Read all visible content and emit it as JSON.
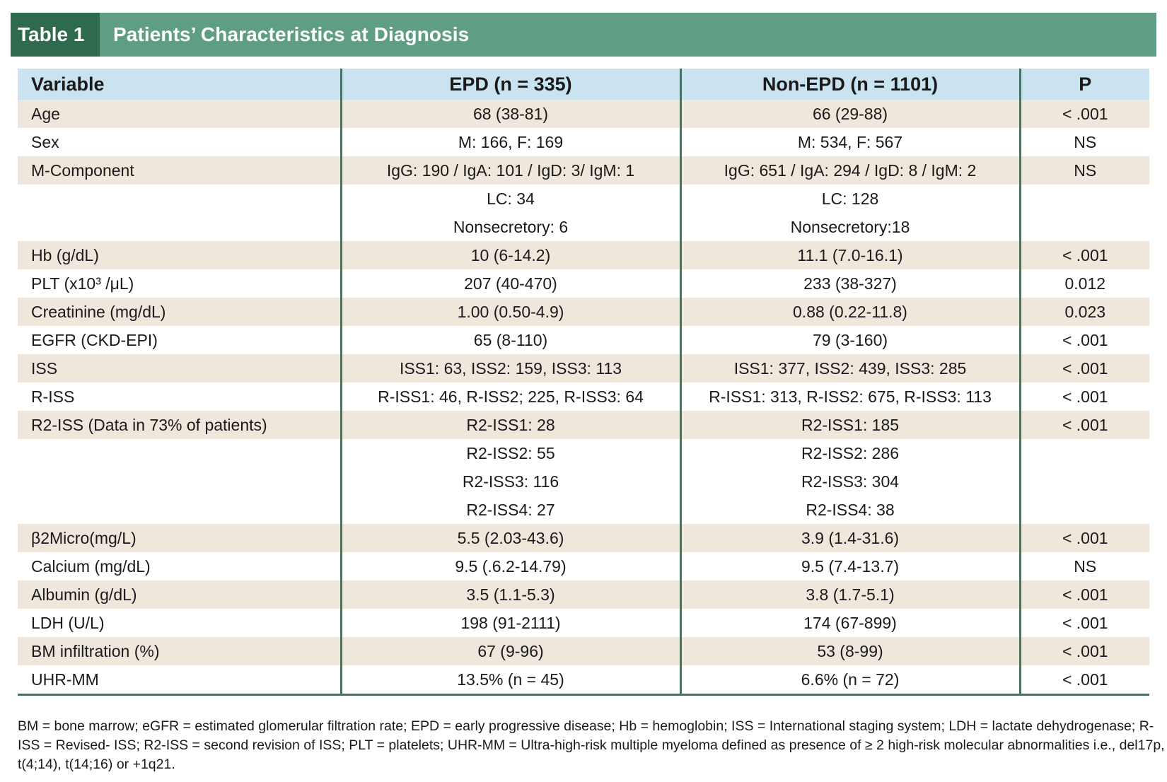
{
  "title": {
    "tag": "Table 1",
    "text": "Patients’ Characteristics at Diagnosis"
  },
  "table": {
    "headers": [
      "Variable",
      "EPD (n = 335)",
      "Non-EPD (n = 1101)",
      "P"
    ],
    "rows": [
      {
        "variable": "Age",
        "epd": "68 (38-81)",
        "non_epd": "66 (29-88)",
        "p": "< .001"
      },
      {
        "variable": "Sex",
        "epd": "M: 166, F: 169",
        "non_epd": "M: 534, F: 567",
        "p": "NS"
      },
      {
        "variable": "M-Component",
        "epd": "IgG: 190 / IgA: 101 / IgD: 3/ IgM: 1",
        "non_epd": "IgG: 651 / IgA: 294 / IgD: 8 / IgM: 2",
        "p": "NS"
      },
      {
        "variable": "",
        "epd": "LC: 34",
        "non_epd": "LC: 128",
        "p": ""
      },
      {
        "variable": "",
        "epd": "Nonsecretory: 6",
        "non_epd": "Nonsecretory:18",
        "p": ""
      },
      {
        "variable": "Hb (g/dL)",
        "epd": "10 (6-14.2)",
        "non_epd": "11.1 (7.0-16.1)",
        "p": "< .001"
      },
      {
        "variable": "PLT (x10³ /μL)",
        "epd": "207 (40-470)",
        "non_epd": "233 (38-327)",
        "p": "0.012"
      },
      {
        "variable": "Creatinine (mg/dL)",
        "epd": "1.00 (0.50-4.9)",
        "non_epd": "0.88 (0.22-11.8)",
        "p": "0.023"
      },
      {
        "variable": "EGFR (CKD-EPI)",
        "epd": "65 (8-110)",
        "non_epd": "79 (3-160)",
        "p": "< .001"
      },
      {
        "variable": "ISS",
        "epd": "ISS1: 63, ISS2: 159, ISS3: 113",
        "non_epd": "ISS1: 377, ISS2: 439, ISS3: 285",
        "p": "< .001"
      },
      {
        "variable": "R-ISS",
        "epd": "R-ISS1: 46, R-ISS2; 225, R-ISS3: 64",
        "non_epd": "R-ISS1: 313, R-ISS2: 675, R-ISS3: 113",
        "p": "< .001"
      },
      {
        "variable": "R2-ISS (Data in 73% of patients)",
        "epd": "R2-ISS1: 28",
        "non_epd": "R2-ISS1: 185",
        "p": "< .001"
      },
      {
        "variable": "",
        "epd": "R2-ISS2: 55",
        "non_epd": "R2-ISS2: 286",
        "p": ""
      },
      {
        "variable": "",
        "epd": "R2-ISS3: 116",
        "non_epd": "R2-ISS3: 304",
        "p": ""
      },
      {
        "variable": "",
        "epd": "R2-ISS4: 27",
        "non_epd": "R2-ISS4: 38",
        "p": ""
      },
      {
        "variable": "β2Micro(mg/L)",
        "epd": "5.5 (2.03-43.6)",
        "non_epd": "3.9 (1.4-31.6)",
        "p": "< .001"
      },
      {
        "variable": "Calcium (mg/dL)",
        "epd": "9.5 (.6.2-14.79)",
        "non_epd": "9.5 (7.4-13.7)",
        "p": "NS"
      },
      {
        "variable": "Albumin (g/dL)",
        "epd": "3.5 (1.1-5.3)",
        "non_epd": "3.8 (1.7-5.1)",
        "p": "< .001"
      },
      {
        "variable": "LDH (U/L)",
        "epd": "198 (91-2111)",
        "non_epd": "174 (67-899)",
        "p": "< .001"
      },
      {
        "variable": "BM infiltration (%)",
        "epd": "67 (9-96)",
        "non_epd": "53 (8-99)",
        "p": "< .001"
      },
      {
        "variable": "UHR-MM",
        "epd": "13.5% (n = 45)",
        "non_epd": "6.6% (n = 72)",
        "p": "< .001"
      }
    ]
  },
  "footnote": {
    "line1": "BM = bone marrow; eGFR = estimated glomerular filtration rate; EPD = early progressive disease; Hb = hemoglobin; ISS = International staging system; LDH = lactate dehydrogenase; R-",
    "line2": "ISS = Revised- ISS; R2-ISS = second revision of ISS; PLT = platelets; UHR-MM = Ultra-high-risk multiple myeloma defined as presence of ≥ 2 high-risk molecular abnormalities i.e., del17p,",
    "line3": "t(4;14), t(14;16) or +1q21."
  },
  "colors": {
    "title_bar": "#5f9e85",
    "title_tag": "#2f6a4d",
    "header_row": "#c9e3f1",
    "shaded_row": "#efe6dc",
    "rule": "#3c7a5d"
  }
}
